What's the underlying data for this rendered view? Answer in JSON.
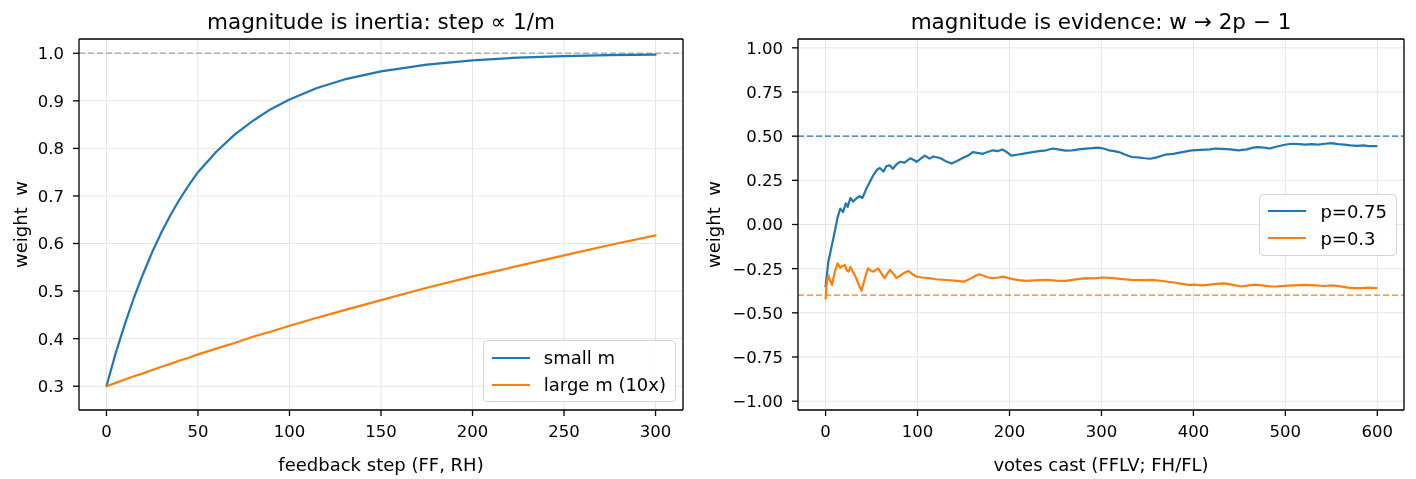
{
  "chart_data": [
    {
      "type": "line",
      "title": "magnitude is inertia: step ∝ 1/m",
      "xlabel": "feedback step (FF, RH)",
      "ylabel": "weight  w",
      "x": [
        0,
        5,
        10,
        15,
        20,
        25,
        30,
        35,
        40,
        45,
        50,
        60,
        70,
        80,
        90,
        100,
        115,
        130,
        150,
        175,
        200,
        225,
        250,
        275,
        300
      ],
      "series": [
        {
          "name": "small m",
          "color": "#1f77b4",
          "values": [
            0.3,
            0.369,
            0.43,
            0.486,
            0.536,
            0.582,
            0.623,
            0.66,
            0.693,
            0.723,
            0.75,
            0.793,
            0.829,
            0.858,
            0.883,
            0.903,
            0.927,
            0.945,
            0.962,
            0.976,
            0.985,
            0.991,
            0.994,
            0.996,
            0.997
          ]
        },
        {
          "name": "large m (10x)",
          "color": "#ff7f0e",
          "values": [
            0.3,
            0.307,
            0.314,
            0.321,
            0.327,
            0.334,
            0.341,
            0.347,
            0.354,
            0.36,
            0.367,
            0.379,
            0.391,
            0.404,
            0.415,
            0.427,
            0.444,
            0.46,
            0.481,
            0.507,
            0.531,
            0.553,
            0.575,
            0.597,
            0.617
          ]
        }
      ],
      "xlim": [
        -15,
        315
      ],
      "ylim": [
        0.25,
        1.03
      ],
      "xticks": [
        0,
        50,
        100,
        150,
        200,
        250,
        300
      ],
      "yticks": [
        0.3,
        0.4,
        0.5,
        0.6,
        0.7,
        0.8,
        0.9,
        {
          "value": 1,
          "label": "1.0"
        }
      ],
      "grid": true,
      "legend": "bottom right",
      "ref_lines": [
        {
          "axis": "y",
          "value": 1,
          "color": "#b0b0b0",
          "line_style": "dashed"
        }
      ]
    },
    {
      "type": "line",
      "title": "magnitude is evidence: w → 2p − 1",
      "xlabel": "votes cast (FFLV; FH/FL)",
      "ylabel": "weight  w",
      "series": [
        {
          "name": "p=0.75",
          "color": "#1f77b4",
          "x": [
            0,
            3,
            5,
            10,
            13,
            16,
            19,
            22,
            24,
            27,
            30,
            34,
            37,
            40,
            45,
            52,
            56,
            59,
            63,
            66,
            70,
            73,
            77,
            81,
            86,
            92,
            96,
            99,
            104,
            108,
            113,
            117,
            120,
            125,
            130,
            137,
            143,
            149,
            155,
            160,
            165,
            171,
            176,
            182,
            187,
            192,
            197,
            202,
            208,
            214,
            220,
            225,
            232,
            240,
            247,
            253,
            261,
            268,
            275,
            283,
            290,
            296,
            302,
            308,
            314,
            319,
            326,
            333,
            340,
            347,
            353,
            360,
            369,
            378,
            388,
            398,
            408,
            418,
            424,
            432,
            440,
            449,
            458,
            465,
            470,
            477,
            483,
            490,
            498,
            506,
            515,
            522,
            528,
            536,
            543,
            550,
            557,
            564,
            571,
            578,
            585,
            591,
            599
          ],
          "values": [
            -0.35,
            -0.21,
            -0.163,
            -0.04,
            0.04,
            0.09,
            0.07,
            0.12,
            0.1,
            0.15,
            0.13,
            0.15,
            0.16,
            0.15,
            0.21,
            0.28,
            0.31,
            0.32,
            0.3,
            0.33,
            0.335,
            0.315,
            0.34,
            0.355,
            0.35,
            0.375,
            0.365,
            0.355,
            0.375,
            0.39,
            0.373,
            0.385,
            0.382,
            0.375,
            0.36,
            0.345,
            0.36,
            0.376,
            0.39,
            0.41,
            0.405,
            0.4,
            0.41,
            0.42,
            0.415,
            0.425,
            0.41,
            0.39,
            0.395,
            0.4,
            0.405,
            0.41,
            0.415,
            0.42,
            0.43,
            0.425,
            0.418,
            0.42,
            0.425,
            0.43,
            0.432,
            0.435,
            0.43,
            0.42,
            0.415,
            0.41,
            0.395,
            0.382,
            0.38,
            0.375,
            0.372,
            0.38,
            0.395,
            0.4,
            0.41,
            0.42,
            0.422,
            0.425,
            0.43,
            0.428,
            0.425,
            0.42,
            0.425,
            0.435,
            0.438,
            0.435,
            0.43,
            0.44,
            0.45,
            0.457,
            0.455,
            0.452,
            0.455,
            0.452,
            0.457,
            0.461,
            0.455,
            0.452,
            0.448,
            0.445,
            0.448,
            0.444,
            0.444
          ]
        },
        {
          "name": "p=0.3",
          "color": "#ff7f0e",
          "x": [
            0,
            1,
            3,
            5,
            7,
            10,
            13,
            16,
            18,
            21,
            23,
            25,
            27,
            30,
            33,
            36,
            39,
            43,
            46,
            49,
            52,
            55,
            57,
            61,
            64,
            67,
            70,
            74,
            77,
            81,
            85,
            90,
            94,
            99,
            105,
            113,
            120,
            131,
            140,
            151,
            158,
            163,
            167,
            172,
            177,
            182,
            188,
            193,
            200,
            210,
            218,
            228,
            240,
            250,
            261,
            270,
            283,
            292,
            301,
            310,
            320,
            333,
            345,
            355,
            366,
            377,
            386,
            395,
            402,
            409,
            418,
            427,
            434,
            443,
            452,
            460,
            467,
            476,
            485,
            492,
            499,
            508,
            521,
            533,
            542,
            550,
            560,
            568,
            575,
            583,
            590,
            599
          ],
          "values": [
            -0.42,
            -0.34,
            -0.286,
            -0.32,
            -0.342,
            -0.267,
            -0.22,
            -0.245,
            -0.235,
            -0.23,
            -0.26,
            -0.267,
            -0.24,
            -0.27,
            -0.3,
            -0.34,
            -0.375,
            -0.3,
            -0.248,
            -0.26,
            -0.267,
            -0.255,
            -0.248,
            -0.28,
            -0.304,
            -0.28,
            -0.257,
            -0.28,
            -0.304,
            -0.29,
            -0.275,
            -0.263,
            -0.28,
            -0.295,
            -0.3,
            -0.304,
            -0.31,
            -0.314,
            -0.318,
            -0.323,
            -0.305,
            -0.29,
            -0.282,
            -0.29,
            -0.3,
            -0.304,
            -0.3,
            -0.295,
            -0.305,
            -0.315,
            -0.319,
            -0.316,
            -0.313,
            -0.318,
            -0.319,
            -0.312,
            -0.304,
            -0.305,
            -0.3,
            -0.302,
            -0.308,
            -0.313,
            -0.315,
            -0.313,
            -0.32,
            -0.327,
            -0.335,
            -0.342,
            -0.34,
            -0.345,
            -0.34,
            -0.335,
            -0.333,
            -0.342,
            -0.351,
            -0.345,
            -0.34,
            -0.346,
            -0.351,
            -0.35,
            -0.347,
            -0.345,
            -0.342,
            -0.345,
            -0.348,
            -0.345,
            -0.35,
            -0.357,
            -0.36,
            -0.36,
            -0.357,
            -0.36
          ]
        }
      ],
      "xlim": [
        -30,
        629
      ],
      "ylim": [
        -1.05,
        1.05
      ],
      "xticks": [
        0,
        100,
        200,
        300,
        400,
        500,
        600
      ],
      "yticks": [
        {
          "value": -1,
          "label": "−1.00"
        },
        {
          "value": -0.75,
          "label": "−0.75"
        },
        {
          "value": -0.5,
          "label": "−0.50"
        },
        {
          "value": -0.25,
          "label": "−0.25"
        },
        {
          "value": 0,
          "label": "0.00"
        },
        {
          "value": 0.25,
          "label": "0.25"
        },
        {
          "value": 0.5,
          "label": "0.50"
        },
        {
          "value": 0.75,
          "label": "0.75"
        },
        {
          "value": 1,
          "label": "1.00"
        }
      ],
      "grid": true,
      "legend": "right",
      "ref_lines": [
        {
          "axis": "y",
          "value": 0.5,
          "color": "#1f77b4",
          "line_style": "dashed"
        },
        {
          "axis": "y",
          "value": -0.4,
          "color": "#ff7f0e",
          "line_style": "dashed"
        }
      ]
    }
  ]
}
